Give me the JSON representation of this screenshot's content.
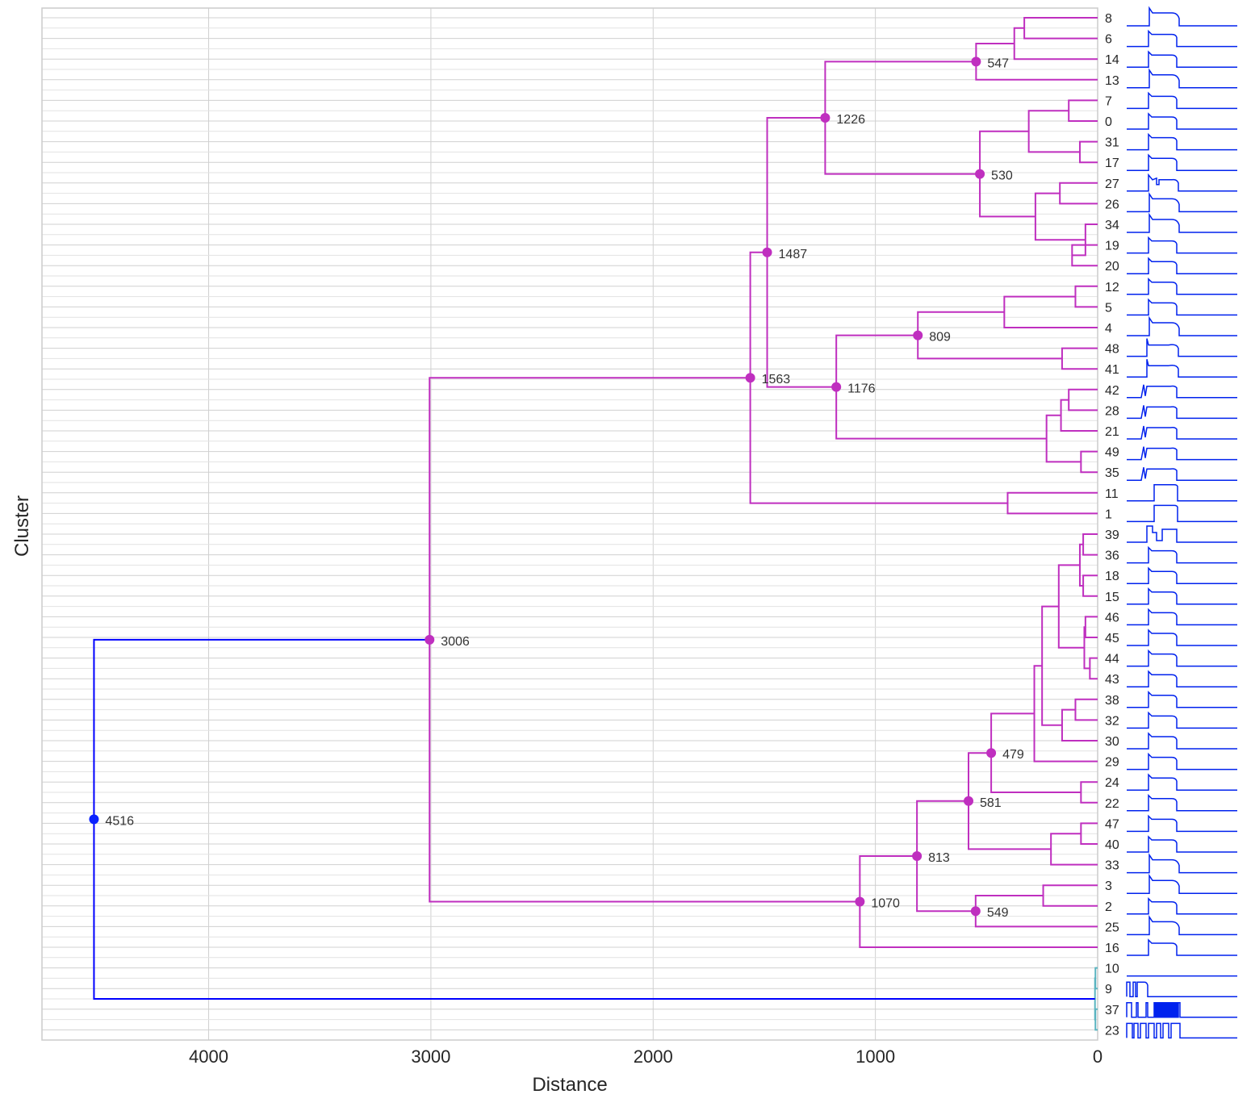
{
  "chart_data": {
    "type": "dendrogram",
    "orientation": "left",
    "xlabel": "Distance",
    "ylabel": "Cluster",
    "xlim": [
      4750,
      0
    ],
    "x_ticks": [
      4000,
      3000,
      2000,
      1000,
      0
    ],
    "grid": true,
    "leaves": [
      "8",
      "6",
      "14",
      "13",
      "7",
      "0",
      "31",
      "17",
      "27",
      "26",
      "34",
      "19",
      "20",
      "12",
      "5",
      "4",
      "48",
      "41",
      "42",
      "28",
      "21",
      "49",
      "35",
      "11",
      "1",
      "39",
      "36",
      "18",
      "15",
      "46",
      "45",
      "44",
      "43",
      "38",
      "32",
      "30",
      "29",
      "24",
      "22",
      "47",
      "40",
      "33",
      "3",
      "2",
      "25",
      "16",
      "10",
      "9",
      "37",
      "23"
    ],
    "colors": {
      "upper": "#bf2fbf",
      "root": "#0000ff",
      "small": "#5ab4c0",
      "sparkline": "#0022ee",
      "grid": "#d0d0d0",
      "node_root": "#0a22ff"
    },
    "links": [
      {
        "a": "L:8",
        "b": "L:6",
        "h": 330,
        "id": "n1"
      },
      {
        "a": "n1",
        "b": "L:14",
        "h": 375,
        "id": "n2"
      },
      {
        "a": "n2",
        "b": "L:13",
        "h": 547,
        "id": "n3",
        "label": "547"
      },
      {
        "a": "L:7",
        "b": "L:0",
        "h": 130,
        "id": "n4"
      },
      {
        "a": "L:31",
        "b": "L:17",
        "h": 80,
        "id": "n5"
      },
      {
        "a": "n4",
        "b": "n5",
        "h": 310,
        "id": "n6"
      },
      {
        "a": "L:27",
        "b": "L:26",
        "h": 170,
        "id": "n7"
      },
      {
        "a": "L:19",
        "b": "L:20",
        "h": 115,
        "id": "n8"
      },
      {
        "a": "L:34",
        "b": "n8",
        "h": 55,
        "id": "n9",
        "mode": "after"
      },
      {
        "a": "n7",
        "b": "n9",
        "h": 280,
        "id": "n10"
      },
      {
        "a": "n6",
        "b": "n10",
        "h": 530,
        "id": "n11",
        "label": "530"
      },
      {
        "a": "n3",
        "b": "n11",
        "h": 1226,
        "id": "n12",
        "label": "1226"
      },
      {
        "a": "L:12",
        "b": "L:5",
        "h": 100,
        "id": "n13"
      },
      {
        "a": "n13",
        "b": "L:4",
        "h": 420,
        "id": "n14"
      },
      {
        "a": "L:48",
        "b": "L:41",
        "h": 160,
        "id": "n15"
      },
      {
        "a": "n14",
        "b": "n15",
        "h": 809,
        "id": "n16",
        "label": "809"
      },
      {
        "a": "L:42",
        "b": "L:28",
        "h": 130,
        "id": "n17"
      },
      {
        "a": "n17",
        "b": "L:21",
        "h": 165,
        "id": "n18"
      },
      {
        "a": "L:49",
        "b": "L:35",
        "h": 75,
        "id": "n19"
      },
      {
        "a": "n18",
        "b": "n19",
        "h": 230,
        "id": "n20"
      },
      {
        "a": "n16",
        "b": "n20",
        "h": 1176,
        "id": "n21",
        "label": "1176"
      },
      {
        "a": "n12",
        "b": "n21",
        "h": 1487,
        "id": "n22",
        "label": "1487"
      },
      {
        "a": "L:11",
        "b": "L:1",
        "h": 405,
        "id": "n23"
      },
      {
        "a": "n22",
        "b": "n23",
        "h": 1563,
        "id": "n24",
        "label": "1563"
      },
      {
        "a": "L:39",
        "b": "L:36",
        "h": 65,
        "id": "n25"
      },
      {
        "a": "L:18",
        "b": "L:15",
        "h": 65,
        "id": "n26"
      },
      {
        "a": "n25",
        "b": "n26",
        "h": 80,
        "id": "n27"
      },
      {
        "a": "L:46",
        "b": "L:45",
        "h": 55,
        "id": "n28"
      },
      {
        "a": "L:44",
        "b": "L:43",
        "h": 35,
        "id": "n29"
      },
      {
        "a": "n28",
        "b": "n29",
        "h": 60,
        "id": "n30"
      },
      {
        "a": "n27",
        "b": "n30",
        "h": 175,
        "id": "n31"
      },
      {
        "a": "L:38",
        "b": "L:32",
        "h": 100,
        "id": "n32"
      },
      {
        "a": "n32",
        "b": "L:30",
        "h": 160,
        "id": "n33"
      },
      {
        "a": "n31",
        "b": "n33",
        "h": 250,
        "id": "n34"
      },
      {
        "a": "n34",
        "b": "L:29",
        "h": 285,
        "id": "n35"
      },
      {
        "a": "L:24",
        "b": "L:22",
        "h": 75,
        "id": "n36"
      },
      {
        "a": "n35",
        "b": "n36",
        "h": 479,
        "id": "n37",
        "label": "479"
      },
      {
        "a": "L:47",
        "b": "L:40",
        "h": 75,
        "id": "n38"
      },
      {
        "a": "n38",
        "b": "L:33",
        "h": 210,
        "id": "n39"
      },
      {
        "a": "n37",
        "b": "n39",
        "h": 581,
        "id": "n40",
        "label": "581"
      },
      {
        "a": "L:3",
        "b": "L:2",
        "h": 245,
        "id": "n41"
      },
      {
        "a": "n41",
        "b": "L:25",
        "h": 549,
        "id": "n42",
        "label": "549"
      },
      {
        "a": "n40",
        "b": "n42",
        "h": 813,
        "id": "n43",
        "label": "813"
      },
      {
        "a": "n43",
        "b": "L:16",
        "h": 1070,
        "id": "n44",
        "label": "1070"
      },
      {
        "a": "n24",
        "b": "n44",
        "h": 3006,
        "id": "n45",
        "label": "3006"
      },
      {
        "a": "L:10",
        "b": "L:9",
        "h": 10,
        "id": "n46",
        "color": "small"
      },
      {
        "a": "L:37",
        "b": "L:23",
        "h": 10,
        "id": "n47",
        "color": "small"
      },
      {
        "a": "n46",
        "b": "n47",
        "h": 12,
        "id": "n48",
        "color": "small"
      },
      {
        "a": "n45",
        "b": "n48",
        "h": 4516,
        "id": "n49",
        "label": "4516",
        "color": "root"
      }
    ],
    "leaf_profiles": {
      "8": "spike_late",
      "6": "plain_mid",
      "14": "plain_mid",
      "13": "spike_late",
      "7": "plain_mid",
      "0": "plain_mid",
      "31": "plain_mid",
      "17": "plain_mid",
      "27": "bump",
      "26": "spike_late",
      "34": "spike_late",
      "19": "plain_mid",
      "20": "plain_mid",
      "12": "plain_mid",
      "5": "plain_mid",
      "4": "spike_late",
      "48": "early_spike",
      "41": "early_spike",
      "42": "early_dip",
      "28": "early_dip",
      "21": "early_dip",
      "49": "early_dip",
      "35": "early_dip",
      "11": "late_square",
      "1": "late_square",
      "39": "double",
      "36": "plain_mid",
      "18": "plain_mid",
      "15": "plain_mid",
      "46": "plain_mid",
      "45": "plain_mid",
      "44": "plain_mid",
      "43": "plain_mid",
      "38": "plain_mid",
      "32": "plain_mid",
      "30": "plain_mid",
      "29": "plain_mid",
      "24": "plain_mid",
      "22": "plain_mid",
      "47": "plain_mid",
      "40": "plain_mid",
      "33": "spike_late",
      "3": "spike_late",
      "2": "plain_mid",
      "25": "spike_late",
      "16": "plain_mid",
      "10": "flat",
      "9": "pulses_short",
      "37": "pulses_long",
      "23": "pulses_dense"
    }
  }
}
